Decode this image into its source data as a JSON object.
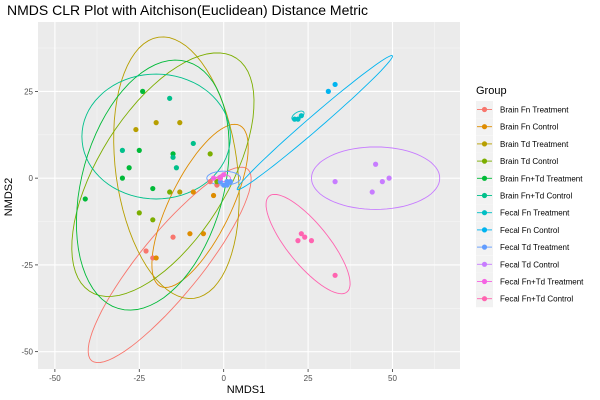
{
  "chart_data": {
    "type": "scatter",
    "title": "NMDS CLR Plot with Aitchison(Euclidean) Distance Metric",
    "xlabel": "NMDS1",
    "ylabel": "NMDS2",
    "xlim": [
      -55,
      70
    ],
    "ylim": [
      -55,
      45
    ],
    "x_ticks": [
      -50,
      -25,
      0,
      25,
      50
    ],
    "y_ticks": [
      -50,
      -25,
      0,
      25
    ],
    "grid": true,
    "legend_title": "Group",
    "legend_position": "right",
    "series": [
      {
        "name": "Brain Fn Treatment",
        "color": "#F8766D",
        "points": [
          [
            -23,
            -21
          ],
          [
            -21,
            -23
          ],
          [
            -15,
            -17
          ],
          [
            -4,
            -1
          ],
          [
            -2,
            -2
          ],
          [
            1,
            -1
          ]
        ],
        "ellipse": {
          "center": [
            -16,
            -25
          ],
          "rx": 36,
          "ry": 9,
          "angle_deg": 50
        }
      },
      {
        "name": "Brain Fn Control",
        "color": "#DE8C00",
        "points": [
          [
            -20,
            -23
          ],
          [
            -10,
            -16
          ],
          [
            -9,
            -4
          ],
          [
            -6,
            -16
          ],
          [
            -3,
            -5
          ],
          [
            -1,
            0
          ]
        ],
        "ellipse": {
          "center": [
            -7,
            -8
          ],
          "rx": 26,
          "ry": 9,
          "angle_deg": 63
        }
      },
      {
        "name": "Brain Td Treatment",
        "color": "#B79F00",
        "points": [
          [
            -26,
            14
          ],
          [
            -20,
            16
          ],
          [
            -13,
            16
          ],
          [
            -13,
            -4
          ]
        ],
        "ellipse": {
          "center": [
            -14,
            3
          ],
          "rx": 38,
          "ry": 18,
          "angle_deg": -82
        }
      },
      {
        "name": "Brain Td Control",
        "color": "#7CAE00",
        "points": [
          [
            -25,
            -10
          ],
          [
            -21,
            -12
          ],
          [
            -16,
            -4
          ],
          [
            -4,
            7
          ],
          [
            -2,
            -1
          ]
        ],
        "ellipse": {
          "center": [
            -18,
            1
          ],
          "rx": 40,
          "ry": 19,
          "angle_deg": 57
        }
      },
      {
        "name": "Brain Fn+Td Treatment",
        "color": "#00BA38",
        "points": [
          [
            -41,
            -6
          ],
          [
            -30,
            0
          ],
          [
            -28,
            3
          ],
          [
            -25,
            8
          ],
          [
            -24,
            25
          ],
          [
            -21,
            -3
          ],
          [
            -15,
            7
          ]
        ],
        "ellipse": {
          "center": [
            -21,
            -2
          ],
          "rx": 37,
          "ry": 21,
          "angle_deg": 74
        }
      },
      {
        "name": "Brain Fn+Td Control",
        "color": "#00C08B",
        "points": [
          [
            -30,
            8
          ],
          [
            -16,
            23
          ],
          [
            -15,
            6
          ],
          [
            -14,
            3
          ],
          [
            -9,
            10
          ]
        ],
        "ellipse": {
          "center": [
            -20,
            12
          ],
          "rx": 22,
          "ry": 18,
          "angle_deg": 0
        }
      },
      {
        "name": "Fecal Fn Treatment",
        "color": "#00BFC4",
        "points": [
          [
            21,
            17
          ],
          [
            22,
            17
          ],
          [
            23,
            18
          ]
        ],
        "ellipse": {
          "center": [
            22,
            18
          ],
          "rx": 2,
          "ry": 1,
          "angle_deg": 30
        }
      },
      {
        "name": "Fecal Fn Control",
        "color": "#00B4F0",
        "points": [
          [
            31,
            25
          ],
          [
            33,
            27
          ]
        ],
        "ellipse": {
          "center": [
            27,
            16
          ],
          "rx": 30,
          "ry": 2,
          "angle_deg": 40
        }
      },
      {
        "name": "Fecal Td Treatment",
        "color": "#619CFF",
        "points": [
          [
            -1,
            -1
          ],
          [
            0,
            -2
          ],
          [
            1,
            -2
          ],
          [
            1,
            -1
          ],
          [
            2,
            -1
          ]
        ],
        "ellipse": {
          "center": [
            0,
            0
          ],
          "rx": 5,
          "ry": 2,
          "angle_deg": 0
        }
      },
      {
        "name": "Fecal Td Control",
        "color": "#C77CFF",
        "points": [
          [
            33,
            -1
          ],
          [
            44,
            -4
          ],
          [
            45,
            4
          ],
          [
            47,
            -1
          ],
          [
            49,
            0
          ]
        ],
        "ellipse": {
          "center": [
            45,
            0
          ],
          "rx": 19,
          "ry": 9,
          "angle_deg": 0
        }
      },
      {
        "name": "Fecal Fn+Td Treatment",
        "color": "#F564E3",
        "points": [
          [
            -3,
            0
          ],
          [
            -1,
            0
          ],
          [
            0,
            1
          ]
        ],
        "ellipse": {
          "center": [
            0,
            0
          ],
          "rx": 2,
          "ry": 1,
          "angle_deg": 0
        }
      },
      {
        "name": "Fecal Fn+Td Control",
        "color": "#FF64B0",
        "points": [
          [
            22,
            -18
          ],
          [
            23,
            -16
          ],
          [
            24,
            -17
          ],
          [
            26,
            -18
          ],
          [
            33,
            -28
          ]
        ],
        "ellipse": {
          "center": [
            25,
            -19
          ],
          "rx": 18,
          "ry": 6,
          "angle_deg": -50
        }
      }
    ]
  }
}
